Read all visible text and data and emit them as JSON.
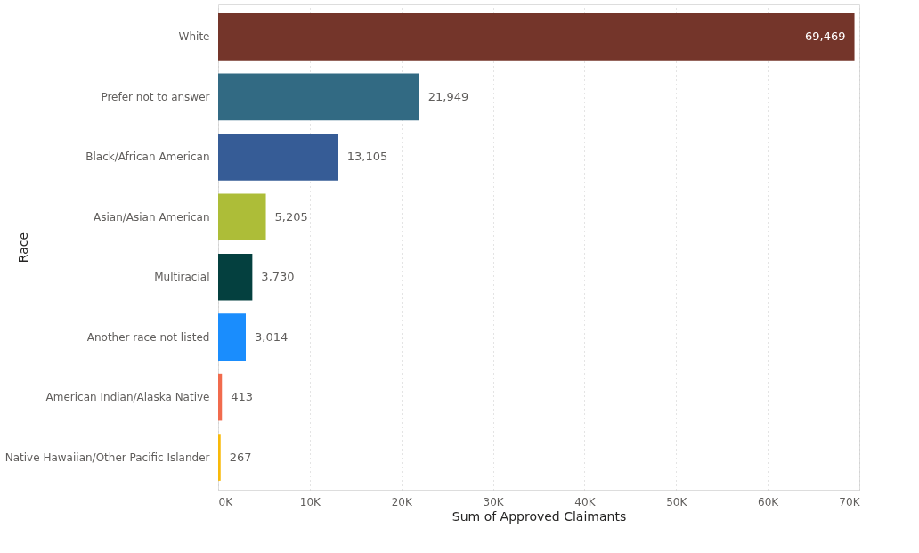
{
  "chart_data": {
    "type": "bar",
    "orientation": "horizontal",
    "xlabel": "Sum of Approved Claimants",
    "ylabel": "Race",
    "categories": [
      "White",
      "Prefer not to answer",
      "Black/African American",
      "Asian/Asian American",
      "Multiracial",
      "Another race not listed",
      "American Indian/Alaska Native",
      "Native Hawaiian/Other Pacific Islander"
    ],
    "values": [
      69469,
      21949,
      13105,
      5205,
      3730,
      3014,
      413,
      267
    ],
    "colors": [
      "#74352a",
      "#326a83",
      "#365c96",
      "#adbd38",
      "#04403f",
      "#1a8dfd",
      "#f16b4d",
      "#f8b90a"
    ],
    "value_labels": [
      "69,469",
      "21,949",
      "13,105",
      "5,205",
      "3,730",
      "3,014",
      "413",
      "267"
    ],
    "xlim": [
      0,
      70000
    ],
    "xticks": [
      {
        "value": 0,
        "label": "0K"
      },
      {
        "value": 10000,
        "label": "10K"
      },
      {
        "value": 20000,
        "label": "20K"
      },
      {
        "value": 30000,
        "label": "30K"
      },
      {
        "value": 40000,
        "label": "40K"
      },
      {
        "value": 50000,
        "label": "50K"
      },
      {
        "value": 60000,
        "label": "60K"
      },
      {
        "value": 70000,
        "label": "70K"
      }
    ],
    "grid": "x"
  }
}
